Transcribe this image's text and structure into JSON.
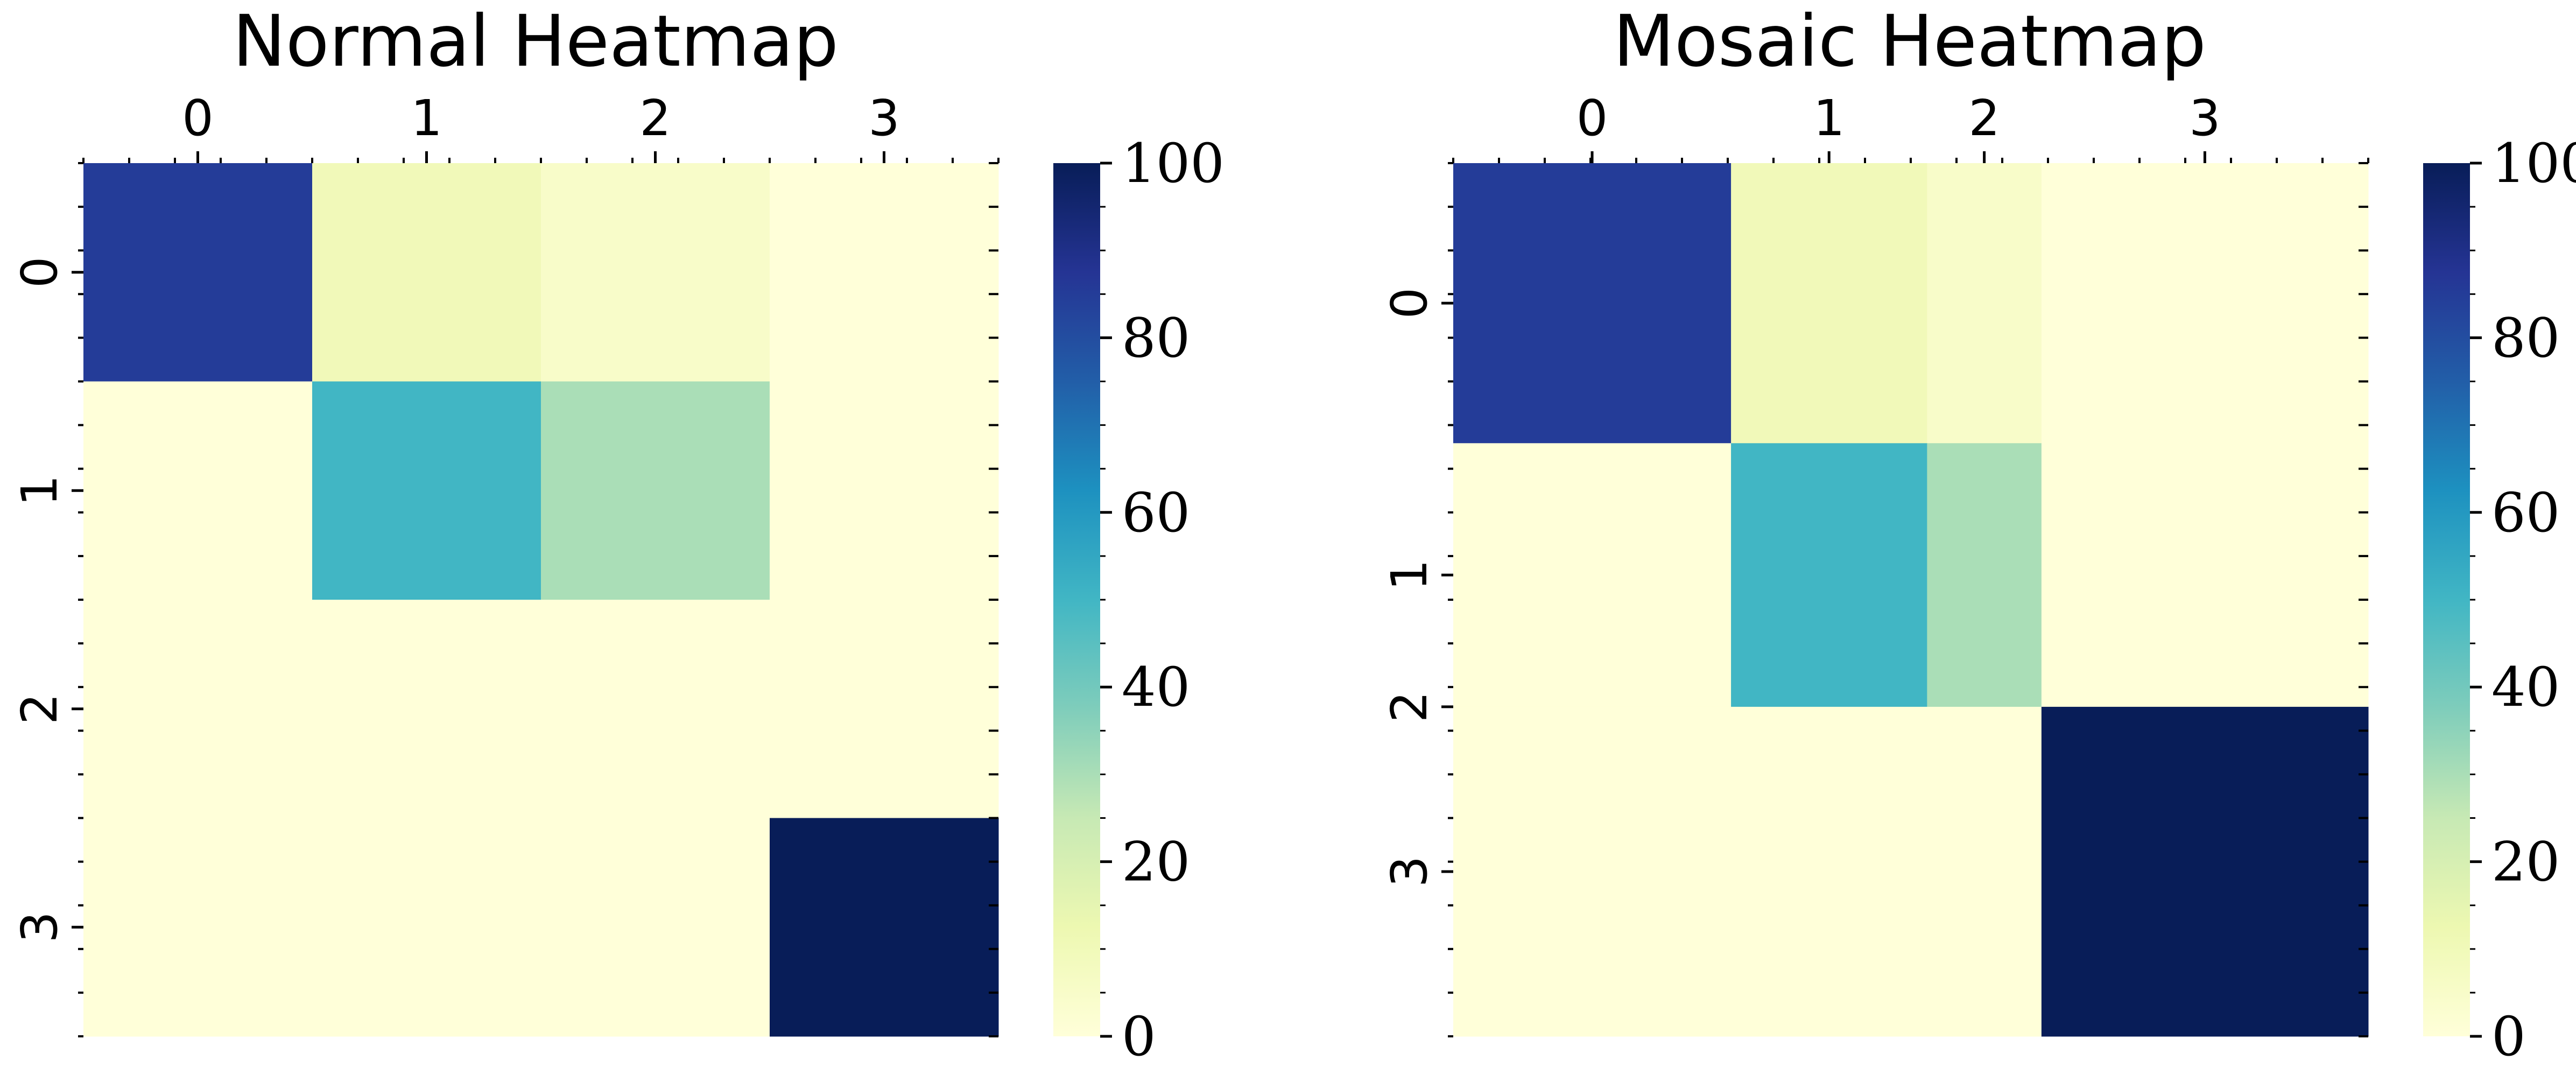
{
  "chart_data": [
    {
      "type": "heatmap",
      "title": "Normal Heatmap",
      "x_tick_labels": [
        "0",
        "1",
        "2",
        "3"
      ],
      "y_tick_labels": [
        "0",
        "1",
        "2",
        "3"
      ],
      "col_weights": [
        1,
        1,
        1,
        1
      ],
      "row_weights": [
        1,
        1,
        1,
        1
      ],
      "values": [
        [
          85,
          10,
          5,
          0
        ],
        [
          0,
          50,
          30,
          0
        ],
        [
          0,
          0,
          0,
          0
        ],
        [
          0,
          0,
          0,
          100
        ]
      ],
      "colormap": "YlGnBu",
      "vmin": 0,
      "vmax": 100,
      "colorbar_ticks": [
        "0",
        "20",
        "40",
        "60",
        "80",
        "100"
      ]
    },
    {
      "type": "heatmap",
      "title": "Mosaic Heatmap",
      "x_tick_labels": [
        "0",
        "1",
        "2",
        "3"
      ],
      "y_tick_labels": [
        "0",
        "1",
        "2",
        "3"
      ],
      "col_weights": [
        0.85,
        0.6,
        0.35,
        1.0
      ],
      "row_weights": [
        0.85,
        0.8,
        0.0,
        1.0
      ],
      "values": [
        [
          85,
          10,
          5,
          0
        ],
        [
          0,
          50,
          30,
          0
        ],
        [
          0,
          0,
          0,
          0
        ],
        [
          0,
          0,
          0,
          100
        ]
      ],
      "colormap": "YlGnBu",
      "vmin": 0,
      "vmax": 100,
      "colorbar_ticks": [
        "0",
        "20",
        "40",
        "60",
        "80",
        "100"
      ]
    }
  ],
  "colors": {
    "colormap_stops": [
      "#ffffd9",
      "#edf8b1",
      "#c7e9b4",
      "#7fcdbb",
      "#41b6c4",
      "#1d91c0",
      "#225ea8",
      "#253494",
      "#081d58"
    ]
  }
}
